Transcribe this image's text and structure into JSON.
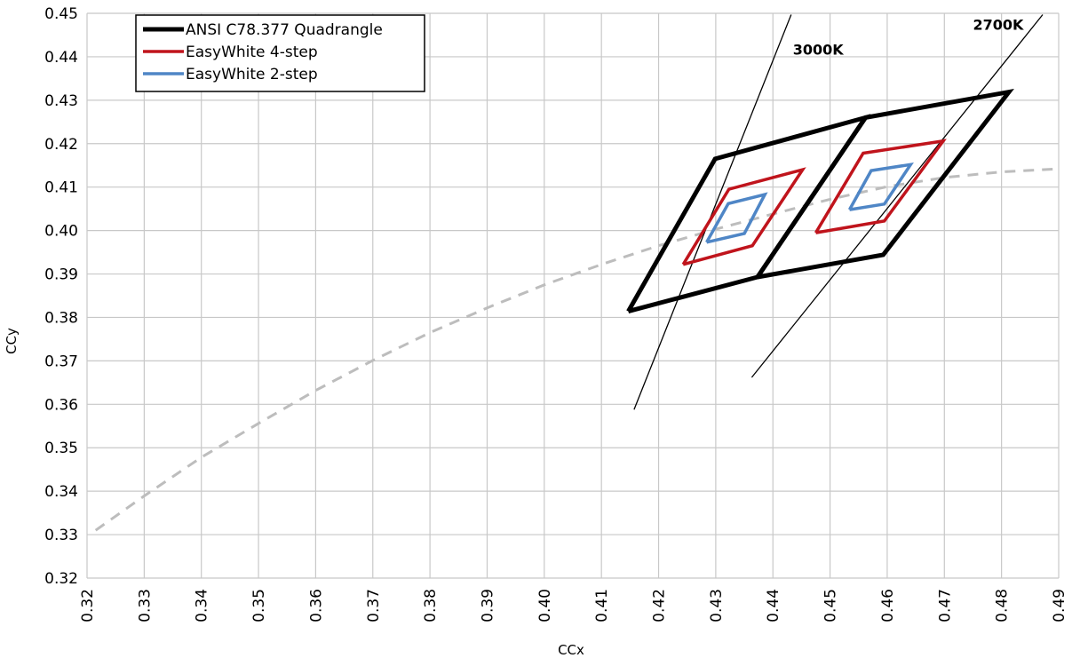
{
  "chart_data": {
    "type": "scatter",
    "title": "",
    "xlabel": "CCx",
    "ylabel": "CCy",
    "xlim": [
      0.32,
      0.49
    ],
    "ylim": [
      0.32,
      0.45
    ],
    "x_ticks": [
      "0.32",
      "0.33",
      "0.34",
      "0.35",
      "0.36",
      "0.37",
      "0.38",
      "0.39",
      "0.40",
      "0.41",
      "0.42",
      "0.43",
      "0.44",
      "0.45",
      "0.46",
      "0.47",
      "0.48",
      "0.49"
    ],
    "y_ticks": [
      "0.32",
      "0.33",
      "0.34",
      "0.35",
      "0.36",
      "0.37",
      "0.38",
      "0.39",
      "0.40",
      "0.41",
      "0.42",
      "0.43",
      "0.44",
      "0.45"
    ],
    "grid": true,
    "legend_position": "top-left",
    "legend": [
      {
        "name": "ANSI C78.377 Quadrangle",
        "color": "#000000"
      },
      {
        "name": "EasyWhite 4-step",
        "color": "#c0141c"
      },
      {
        "name": "EasyWhite 2-step",
        "color": "#4f86c6"
      }
    ],
    "series": [
      {
        "name": "ANSI C78.377 Quadrangle",
        "color": "#000000",
        "style": "solid-thick",
        "shapes": [
          [
            [
              0.4147,
              0.3814
            ],
            [
              0.4299,
              0.4165
            ],
            [
              0.4562,
              0.426
            ],
            [
              0.4373,
              0.3893
            ],
            [
              0.4147,
              0.3814
            ]
          ],
          [
            [
              0.4373,
              0.3893
            ],
            [
              0.4562,
              0.426
            ],
            [
              0.4813,
              0.4319
            ],
            [
              0.4593,
              0.3944
            ],
            [
              0.4373,
              0.3893
            ]
          ]
        ]
      },
      {
        "name": "EasyWhite 4-step",
        "color": "#c0141c",
        "style": "solid",
        "shapes": [
          [
            [
              0.4243,
              0.3922
            ],
            [
              0.4323,
              0.4095
            ],
            [
              0.4452,
              0.414
            ],
            [
              0.4364,
              0.3965
            ],
            [
              0.4243,
              0.3922
            ]
          ],
          [
            [
              0.4475,
              0.3995
            ],
            [
              0.4558,
              0.4178
            ],
            [
              0.4698,
              0.4206
            ],
            [
              0.4595,
              0.4022
            ],
            [
              0.4475,
              0.3995
            ]
          ]
        ]
      },
      {
        "name": "EasyWhite 2-step",
        "color": "#4f86c6",
        "style": "solid",
        "shapes": [
          [
            [
              0.4284,
              0.3973
            ],
            [
              0.4322,
              0.4062
            ],
            [
              0.4386,
              0.4083
            ],
            [
              0.435,
              0.3993
            ],
            [
              0.4284,
              0.3973
            ]
          ],
          [
            [
              0.4534,
              0.4048
            ],
            [
              0.4572,
              0.4138
            ],
            [
              0.4641,
              0.4152
            ],
            [
              0.4595,
              0.4061
            ],
            [
              0.4534,
              0.4048
            ]
          ]
        ]
      },
      {
        "name": "blackbody-locus",
        "color": "#bdbdbd",
        "style": "dashed",
        "points": [
          [
            0.3215,
            0.331
          ],
          [
            0.33,
            0.3389
          ],
          [
            0.34,
            0.3478
          ],
          [
            0.35,
            0.3556
          ],
          [
            0.36,
            0.3632
          ],
          [
            0.37,
            0.3701
          ],
          [
            0.38,
            0.3765
          ],
          [
            0.39,
            0.3822
          ],
          [
            0.4,
            0.3875
          ],
          [
            0.41,
            0.3922
          ],
          [
            0.42,
            0.3965
          ],
          [
            0.43,
            0.4003
          ],
          [
            0.44,
            0.4038
          ],
          [
            0.45,
            0.4072
          ],
          [
            0.46,
            0.4101
          ],
          [
            0.47,
            0.4122
          ],
          [
            0.48,
            0.4135
          ],
          [
            0.49,
            0.4142
          ]
        ]
      },
      {
        "name": "3000K-isotherm",
        "color": "#000000",
        "style": "thin",
        "points": [
          [
            0.4157,
            0.3588
          ],
          [
            0.4432,
            0.4497
          ]
        ]
      },
      {
        "name": "2700K-isotherm",
        "color": "#000000",
        "style": "thin",
        "points": [
          [
            0.4363,
            0.3662
          ],
          [
            0.4872,
            0.4497
          ]
        ]
      }
    ],
    "annotations": [
      {
        "text": "3000K",
        "x": 0.4435,
        "y": 0.4405
      },
      {
        "text": "2700K",
        "x": 0.475,
        "y": 0.4462
      }
    ]
  }
}
